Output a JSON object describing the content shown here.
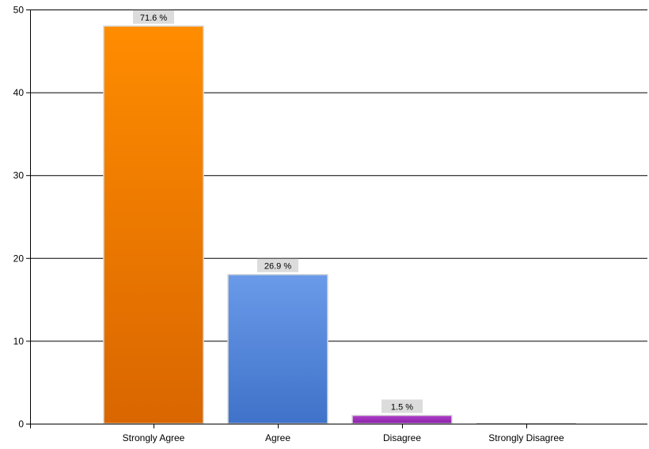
{
  "chart_data": {
    "type": "bar",
    "categories": [
      "Strongly Agree",
      "Agree",
      "Disagree",
      "Strongly Disagree"
    ],
    "values": [
      48,
      18,
      1,
      0
    ],
    "data_labels": [
      "71.6 %",
      "26.9 %",
      "1.5 %",
      ""
    ],
    "title": "",
    "xlabel": "",
    "ylabel": "",
    "ylim": [
      0,
      50
    ],
    "yticks": [
      0,
      10,
      20,
      30,
      40,
      50
    ],
    "grid": true,
    "colors": {
      "Strongly Agree": [
        "#ff8c00",
        "#d96600"
      ],
      "Agree": [
        "#6a9ae9",
        "#3f72c9"
      ],
      "Disagree": [
        "#b040c8",
        "#8a20a8"
      ],
      "Strongly Disagree": [
        "#b0b0b0",
        "#909090"
      ]
    }
  }
}
